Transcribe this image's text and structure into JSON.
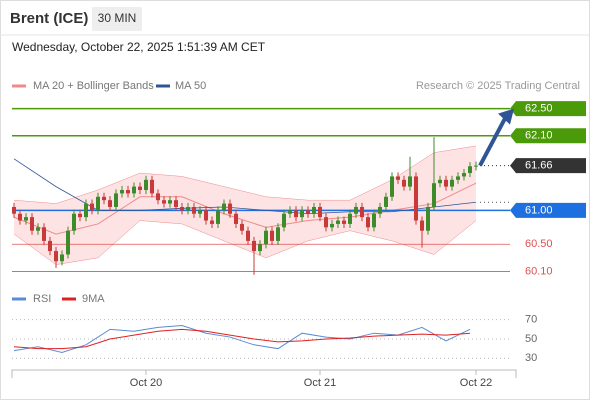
{
  "chart_data": {
    "type": "candlestick",
    "title": "Brent (ICE)",
    "interval": "30 MIN",
    "subtitle": "Wednesday, October 22, 2025 1:51:39 AM CET",
    "source": "Research © 2025 Trading Central",
    "up_color": "#3d8b2a",
    "down_color": "#c83a3a",
    "ylim": [
      59.9,
      62.7
    ],
    "open": [
      61.05,
      60.95,
      60.85,
      60.9,
      60.7,
      60.75,
      60.55,
      60.4,
      60.25,
      60.35,
      60.7,
      60.95,
      60.9,
      61.1,
      61.0,
      61.2,
      61.15,
      61.05,
      61.25,
      61.3,
      61.25,
      61.35,
      61.3,
      61.45,
      61.25,
      61.15,
      61.1,
      61.15,
      61.05,
      61.0,
      61.05,
      60.95,
      61.0,
      60.85,
      60.8,
      61.0,
      61.1,
      60.95,
      60.8,
      60.7,
      60.55,
      60.4,
      60.5,
      60.7,
      60.55,
      60.75,
      60.95,
      61.0,
      60.9,
      61.0,
      60.95,
      61.05,
      60.9,
      60.75,
      60.8,
      60.85,
      60.8,
      60.95,
      61.05,
      60.9,
      60.75,
      60.95,
      61.05,
      61.2,
      61.5,
      61.45,
      61.35,
      61.5,
      60.85,
      60.7,
      61.05,
      61.4,
      61.45,
      61.35,
      61.45,
      61.5,
      61.55,
      61.65
    ],
    "high": [
      61.11,
      61.01,
      60.96,
      60.96,
      60.81,
      60.81,
      60.61,
      60.46,
      60.41,
      60.76,
      61.01,
      61.01,
      61.16,
      61.16,
      61.26,
      61.26,
      61.21,
      61.31,
      61.36,
      61.36,
      61.41,
      61.41,
      61.51,
      61.51,
      61.31,
      61.21,
      61.21,
      61.21,
      61.11,
      61.11,
      61.11,
      61.06,
      61.06,
      60.91,
      61.06,
      61.16,
      61.16,
      61.01,
      60.86,
      60.76,
      60.61,
      60.56,
      60.76,
      60.76,
      60.81,
      61.01,
      61.06,
      61.06,
      61.06,
      61.06,
      61.11,
      61.11,
      60.96,
      60.86,
      60.91,
      60.91,
      61.01,
      61.11,
      61.11,
      60.96,
      61.01,
      61.11,
      61.26,
      61.56,
      61.56,
      61.51,
      61.79,
      61.56,
      60.91,
      61.11,
      62.08,
      61.51,
      61.51,
      61.51,
      61.56,
      61.61,
      61.71,
      61.72
    ],
    "low": [
      60.89,
      60.79,
      60.79,
      60.64,
      60.64,
      60.49,
      60.34,
      60.15,
      60.19,
      60.29,
      60.64,
      60.84,
      60.84,
      60.94,
      60.94,
      61.09,
      60.99,
      60.99,
      61.19,
      61.19,
      61.19,
      61.24,
      61.24,
      61.19,
      61.09,
      61.04,
      61.04,
      60.99,
      60.94,
      60.94,
      60.89,
      60.89,
      60.79,
      60.74,
      60.74,
      60.94,
      60.89,
      60.74,
      60.64,
      60.49,
      60.05,
      60.34,
      60.44,
      60.49,
      60.49,
      60.69,
      60.89,
      60.84,
      60.84,
      60.89,
      60.89,
      60.84,
      60.69,
      60.69,
      60.74,
      60.74,
      60.74,
      60.89,
      60.84,
      60.69,
      60.69,
      60.89,
      60.99,
      61.14,
      61.39,
      61.29,
      61.29,
      60.79,
      60.45,
      60.64,
      60.99,
      61.34,
      61.29,
      61.29,
      61.39,
      61.44,
      61.49,
      61.59
    ],
    "close": [
      60.95,
      60.85,
      60.9,
      60.7,
      60.75,
      60.55,
      60.4,
      60.25,
      60.35,
      60.7,
      60.95,
      60.9,
      61.1,
      61.0,
      61.2,
      61.15,
      61.05,
      61.25,
      61.3,
      61.25,
      61.35,
      61.3,
      61.45,
      61.25,
      61.15,
      61.1,
      61.15,
      61.05,
      61.0,
      61.05,
      60.95,
      61.0,
      60.85,
      60.8,
      61.0,
      61.1,
      60.95,
      60.8,
      60.7,
      60.55,
      60.4,
      60.5,
      60.7,
      60.55,
      60.75,
      60.95,
      61.0,
      60.9,
      61.0,
      60.95,
      61.05,
      60.9,
      60.75,
      60.8,
      60.85,
      60.8,
      60.95,
      61.05,
      60.9,
      60.75,
      60.95,
      61.05,
      61.2,
      61.5,
      61.45,
      61.35,
      61.5,
      60.85,
      60.7,
      61.05,
      61.4,
      61.45,
      61.35,
      61.45,
      61.5,
      61.55,
      61.65,
      61.66
    ],
    "bands": {
      "name": "MA 20 + Bollinger Bands",
      "color": "#f08a8a",
      "fill": "#fde3e3",
      "x": [
        0,
        7,
        14,
        21,
        28,
        35,
        42,
        49,
        56,
        63,
        70,
        77
      ],
      "upper": [
        61.15,
        61.1,
        61.3,
        61.55,
        61.5,
        61.35,
        61.2,
        61.15,
        61.15,
        61.45,
        61.85,
        61.95
      ],
      "lower": [
        60.65,
        60.2,
        60.3,
        60.85,
        60.8,
        60.55,
        60.3,
        60.55,
        60.7,
        60.55,
        60.35,
        60.85
      ],
      "ma20": [
        60.9,
        60.65,
        60.8,
        61.2,
        61.2,
        60.95,
        60.75,
        60.85,
        60.9,
        61.0,
        61.1,
        61.4
      ]
    },
    "ma50": {
      "name": "MA 50",
      "color": "#2f5597",
      "x": [
        0,
        7,
        14,
        21,
        28,
        35,
        42,
        49,
        56,
        63,
        70,
        77
      ],
      "values": [
        61.76,
        61.35,
        61.0,
        61.0,
        61.03,
        61.05,
        61.0,
        60.95,
        60.98,
        60.98,
        61.05,
        61.12
      ]
    },
    "levels": [
      {
        "value": 62.5,
        "label": "62.50",
        "color": "#4a9a0a",
        "boxed": true
      },
      {
        "value": 62.1,
        "label": "62.10",
        "color": "#4a9a0a",
        "boxed": true
      },
      {
        "value": 61.66,
        "label": "61.66",
        "color": "#333333",
        "boxed": true,
        "dotted": true
      },
      {
        "value": 61.0,
        "label": "61.00",
        "color": "#1e6fe0",
        "boxed": true
      },
      {
        "value": 60.5,
        "label": "60.50",
        "color": "#e05050",
        "boxed": false
      },
      {
        "value": 60.1,
        "label": "60.10",
        "color": "#e05050",
        "boxed": false
      }
    ],
    "xticks": [
      {
        "value": 22,
        "label": "Oct 20"
      },
      {
        "value": 51,
        "label": "Oct 21"
      },
      {
        "value": 77,
        "label": "Oct 22"
      }
    ],
    "rsi": {
      "ylim": [
        20,
        80
      ],
      "yticks": [
        70,
        50,
        30
      ],
      "x": [
        0,
        4,
        8,
        12,
        16,
        20,
        24,
        28,
        32,
        36,
        40,
        44,
        48,
        52,
        56,
        60,
        64,
        68,
        72,
        76
      ],
      "series": [
        {
          "name": "RSI",
          "color": "#5b8bd6",
          "values": [
            38,
            42,
            36,
            44,
            60,
            58,
            62,
            64,
            56,
            52,
            44,
            40,
            56,
            52,
            50,
            56,
            54,
            62,
            48,
            60
          ]
        },
        {
          "name": "9MA",
          "color": "#e02020",
          "values": [
            42,
            40,
            40,
            42,
            50,
            54,
            58,
            60,
            58,
            54,
            50,
            47,
            48,
            50,
            51,
            53,
            54,
            55,
            54,
            56
          ]
        }
      ]
    }
  }
}
